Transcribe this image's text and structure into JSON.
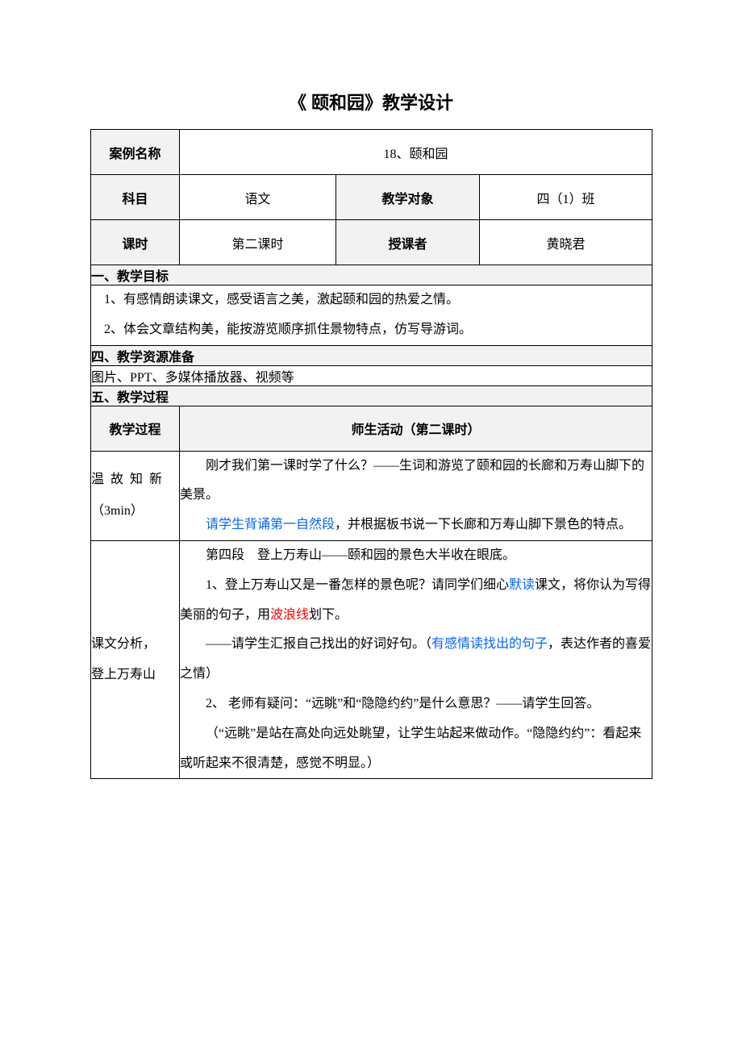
{
  "doc_title": "《 颐和园》教学设计",
  "header": {
    "case_name_label": "案例名称",
    "case_name_value": "18、颐和园",
    "subject_label": "科目",
    "subject_value": "语文",
    "audience_label": "教学对象",
    "audience_value": "四（1）班",
    "period_label": "课时",
    "period_value": "第二课时",
    "lecturer_label": "授课者",
    "lecturer_value": "黄晓君"
  },
  "goals": {
    "heading": "一、教学目标",
    "items": [
      "1、有感情朗读课文，感受语言之美，激起颐和园的热爱之情。",
      "2、体会文章结构美，能按游览顺序抓住景物特点，仿写导游词。"
    ]
  },
  "resources": {
    "heading": "四、教学资源准备",
    "text": "图片、PPT、多媒体播放器、视频等"
  },
  "process": {
    "heading": "五、教学过程",
    "col1": "教学过程",
    "col2": "师生活动（第二课时）",
    "rows": [
      {
        "label_line1": "温 故 知 新",
        "label_line2": "（3min）",
        "activity": [
          {
            "segments": [
              {
                "t": "刚才我们第一课时学了什么？——生词和游览了颐和园的长廊和万寿山脚下的美景。"
              }
            ]
          },
          {
            "segments": [
              {
                "t": "请学生背诵第一自然段",
                "c": "blue"
              },
              {
                "t": "，并根据板书说一下长廊和万寿山脚下景色的特点。"
              }
            ]
          }
        ]
      },
      {
        "label_line1": "课文分析，",
        "label_line2": "登上万寿山",
        "activity": [
          {
            "segments": [
              {
                "t": "第四段　登上万寿山——颐和园的景色大半收在眼底。"
              }
            ]
          },
          {
            "segments": [
              {
                "t": "1、登上万寿山又是一番怎样的景色呢？请同学们细心"
              },
              {
                "t": "默读",
                "c": "blue"
              },
              {
                "t": "课文，将你认为写得美丽的句子，用"
              },
              {
                "t": "波浪线",
                "c": "red"
              },
              {
                "t": "划下。"
              }
            ]
          },
          {
            "segments": [
              {
                "t": "——请学生汇报自己找出的好词好句。（"
              },
              {
                "t": "有感情读找出的句子",
                "c": "blue"
              },
              {
                "t": "，表达作者的喜爱之情）"
              }
            ]
          },
          {
            "segments": [
              {
                "t": "2、 老师有疑问：“远眺”和“隐隐约约”是什么意思？——请学生回答。"
              }
            ]
          },
          {
            "segments": [
              {
                "t": "（“远眺”是站在高处向远处眺望，让学生站起来做动作。“隐隐约约”：看起来或听起来不很清楚，感觉不明显。）"
              }
            ]
          }
        ]
      }
    ]
  },
  "style": {
    "page_bg": "#ffffff",
    "text_color": "#000000",
    "header_bg": "#f2f2f2",
    "border_color": "#000000",
    "blue": "#0066ff",
    "red": "#ff0000",
    "title_fontsize": 22,
    "body_fontsize": 16,
    "line_height": 2.3
  }
}
